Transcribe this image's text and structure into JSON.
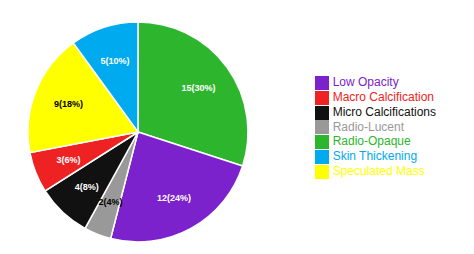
{
  "chart_data": {
    "type": "pie",
    "categories": [
      "Radio-Opaque",
      "Low Opacity",
      "Radio-Lucent",
      "Micro Calcifications",
      "Macro Calcification",
      "Speculated Mass",
      "Skin Thickening"
    ],
    "values": [
      15,
      12,
      2,
      4,
      3,
      9,
      5
    ],
    "value_labels": [
      "15(30%)",
      "12(24%)",
      "2(4%)",
      "4(8%)",
      "3(6%)",
      "9(18%)",
      "5(10%)"
    ],
    "colors": [
      "#2db52d",
      "#7b22cc",
      "#999999",
      "#111111",
      "#ee2222",
      "#ffff00",
      "#00aaee"
    ],
    "data_labels": true,
    "legend": "right"
  }
}
